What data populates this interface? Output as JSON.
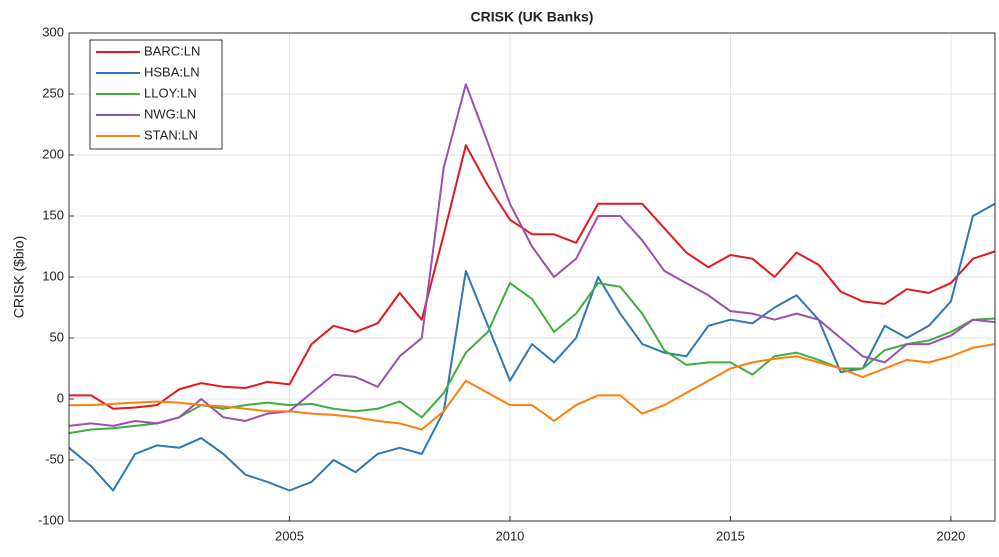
{
  "chart_data": {
    "type": "line",
    "title": "CRISK (UK Banks)",
    "y_label": "CRISK ($bio)",
    "x": [
      2000,
      2000.5,
      2001,
      2001.5,
      2002,
      2002.5,
      2003,
      2003.5,
      2004,
      2004.5,
      2005,
      2005.5,
      2006,
      2006.5,
      2007,
      2007.5,
      2008,
      2008.5,
      2009,
      2009.5,
      2010,
      2010.5,
      2011,
      2011.5,
      2012,
      2012.5,
      2013,
      2013.5,
      2014,
      2014.5,
      2015,
      2015.5,
      2016,
      2016.5,
      2017,
      2017.5,
      2018,
      2018.5,
      2019,
      2019.5,
      2020,
      2020.5,
      2021
    ],
    "series": [
      {
        "name": "BARC:LN",
        "color": "#e3191c",
        "values": [
          3,
          3,
          -8,
          -7,
          -5,
          8,
          13,
          10,
          9,
          14,
          12,
          45,
          60,
          55,
          62,
          87,
          65,
          135,
          208,
          175,
          147,
          135,
          135,
          128,
          160,
          160,
          160,
          140,
          120,
          108,
          118,
          115,
          100,
          120,
          110,
          88,
          80,
          78,
          90,
          87,
          95,
          115,
          121
        ]
      },
      {
        "name": "HSBA:LN",
        "color": "#2f78b4",
        "values": [
          -40,
          -55,
          -75,
          -45,
          -38,
          -40,
          -32,
          -45,
          -62,
          -68,
          -75,
          -68,
          -50,
          -60,
          -45,
          -40,
          -45,
          -10,
          105,
          60,
          15,
          45,
          30,
          50,
          100,
          70,
          45,
          38,
          35,
          60,
          65,
          62,
          75,
          85,
          65,
          22,
          25,
          60,
          50,
          60,
          80,
          150,
          160
        ]
      },
      {
        "name": "LLOY:LN",
        "color": "#3fae3c",
        "values": [
          -28,
          -25,
          -24,
          -22,
          -20,
          -15,
          -5,
          -8,
          -5,
          -3,
          -5,
          -4,
          -8,
          -10,
          -8,
          -2,
          -15,
          5,
          38,
          55,
          95,
          82,
          55,
          70,
          95,
          92,
          70,
          40,
          28,
          30,
          30,
          20,
          35,
          38,
          32,
          25,
          25,
          40,
          45,
          48,
          55,
          65,
          66
        ]
      },
      {
        "name": "NWG:LN",
        "color": "#9b4fb0",
        "values": [
          -22,
          -20,
          -22,
          -18,
          -20,
          -15,
          0,
          -15,
          -18,
          -12,
          -10,
          5,
          20,
          18,
          10,
          35,
          50,
          190,
          258,
          210,
          160,
          125,
          100,
          115,
          150,
          150,
          130,
          105,
          95,
          85,
          72,
          70,
          65,
          70,
          65,
          50,
          35,
          30,
          45,
          45,
          52,
          65,
          63
        ]
      },
      {
        "name": "STAN:LN",
        "color": "#ff7f0e",
        "values": [
          -5,
          -5,
          -4,
          -3,
          -2,
          -3,
          -5,
          -6,
          -8,
          -10,
          -10,
          -12,
          -13,
          -15,
          -18,
          -20,
          -25,
          -10,
          15,
          5,
          -5,
          -5,
          -18,
          -5,
          3,
          3,
          -12,
          -5,
          5,
          15,
          25,
          30,
          33,
          35,
          30,
          25,
          18,
          25,
          32,
          30,
          35,
          42,
          45
        ]
      }
    ],
    "xlim": [
      2000,
      2021
    ],
    "xticks": [
      2005,
      2010,
      2015,
      2020
    ],
    "ylim": [
      -100,
      300
    ],
    "yticks": [
      -100,
      -50,
      0,
      50,
      100,
      150,
      200,
      250,
      300
    ],
    "grid": true,
    "legend": "top-left"
  }
}
